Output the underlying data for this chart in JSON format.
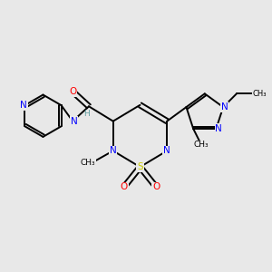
{
  "background_color": "#e8e8e8",
  "atom_colors": {
    "C": "#000000",
    "N": "#0000ff",
    "O": "#ff0000",
    "S": "#cccc00",
    "H": "#5f9ea0"
  },
  "figsize": [
    3.0,
    3.0
  ],
  "dpi": 100,
  "xlim": [
    0,
    10
  ],
  "ylim": [
    0,
    10
  ]
}
